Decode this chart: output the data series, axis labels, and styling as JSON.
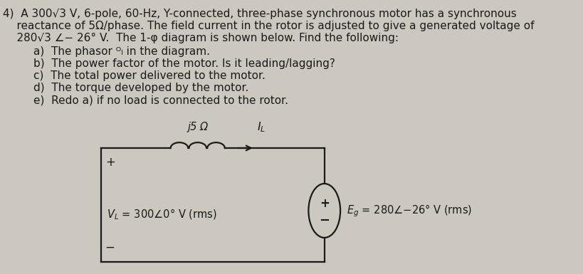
{
  "background_color": "#ccc8c0",
  "text_color": "#1a1a1a",
  "title_line1": "4)  A 300√3 V, 6-pole, 60-Hz, Y-connected, three-phase synchronous motor has a synchronous",
  "title_line2": "    reactance of 5Ω/phase. The field current in the rotor is adjusted to give a generated voltage of",
  "title_line3": "    280√3 ∠− 26° V.  The 1-φ diagram is shown below. Find the following:",
  "items": [
    "a)  The phasor ᴼₗ in the diagram.",
    "b)  The power factor of the motor. Is it leading/lagging?",
    "c)  The total power delivered to the motor.",
    "d)  The torque developed by the motor.",
    "e)  Redo a) if no load is connected to the rotor."
  ],
  "circuit": {
    "inductor_label": "j5 Ω",
    "current_label": "I_L",
    "vl_label": "V_L = 300∠0° V (rms)",
    "eg_label": "E_g = 280∠−26° V (rms)"
  },
  "font_size_main": 11.0,
  "font_size_circuit": 10.5,
  "font_family": "DejaVu Sans"
}
